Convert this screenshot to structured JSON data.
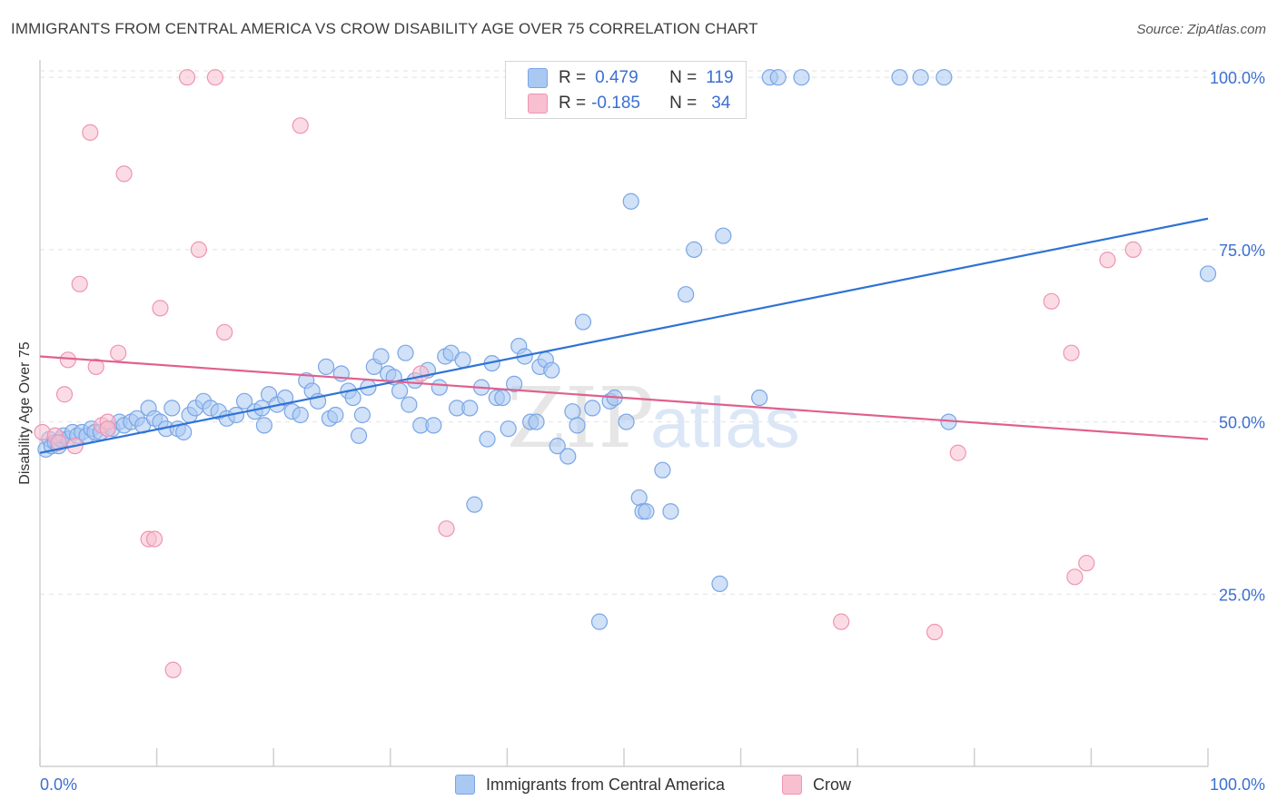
{
  "header": {
    "title": "IMMIGRANTS FROM CENTRAL AMERICA VS CROW DISABILITY AGE OVER 75 CORRELATION CHART",
    "source": "Source: ZipAtlas.com"
  },
  "watermark": {
    "zip": "ZIP",
    "atlas": "atlas"
  },
  "legend": {
    "series1": {
      "r_label": "R =",
      "r_value": "0.479",
      "n_label": "N =",
      "n_value": "119"
    },
    "series2": {
      "r_label": "R =",
      "r_value": "-0.185",
      "n_label": "N =",
      "n_value": "34"
    }
  },
  "colors": {
    "blue_fill": "#a9c8f2",
    "blue_stroke": "#7aa6e6",
    "blue_line": "#2f73d4",
    "pink_fill": "#f7bfd0",
    "pink_stroke": "#ee95b2",
    "pink_line": "#e0608e",
    "tick_text": "#3b6fd1",
    "grid": "#e2e2e2"
  },
  "chart_data": {
    "type": "scatter",
    "title": "IMMIGRANTS FROM CENTRAL AMERICA VS CROW DISABILITY AGE OVER 75 CORRELATION CHART",
    "xlabel": "",
    "ylabel": "Disability Age Over 75",
    "xlim": [
      0,
      100
    ],
    "ylim": [
      0,
      102
    ],
    "x_tick_labels": [
      "0.0%",
      "100.0%"
    ],
    "y_ticks": [
      25,
      50,
      75,
      100
    ],
    "y_tick_labels": [
      "25.0%",
      "50.0%",
      "75.0%",
      "100.0%"
    ],
    "grid": true,
    "legend_placement": "bottom-center",
    "series": [
      {
        "name": "Immigrants from Central America",
        "color": "#a9c8f2",
        "trend": {
          "x": [
            0,
            100
          ],
          "y": [
            45.5,
            79.5
          ]
        },
        "points": [
          [
            0.5,
            46
          ],
          [
            0.8,
            47.5
          ],
          [
            1,
            46.5
          ],
          [
            1.3,
            47
          ],
          [
            1.6,
            46.5
          ],
          [
            1.8,
            47.5
          ],
          [
            2,
            48
          ],
          [
            2.4,
            47.5
          ],
          [
            2.8,
            48.5
          ],
          [
            3.2,
            48
          ],
          [
            3.6,
            48.5
          ],
          [
            4,
            48
          ],
          [
            4.4,
            49
          ],
          [
            4.7,
            48.5
          ],
          [
            5.2,
            48.5
          ],
          [
            5.8,
            49
          ],
          [
            6.2,
            49
          ],
          [
            6.8,
            50
          ],
          [
            7.2,
            49.5
          ],
          [
            7.8,
            50
          ],
          [
            8.3,
            50.5
          ],
          [
            8.8,
            49.5
          ],
          [
            9.3,
            52
          ],
          [
            9.8,
            50.5
          ],
          [
            10.3,
            50
          ],
          [
            10.8,
            49
          ],
          [
            11.3,
            52
          ],
          [
            11.8,
            49
          ],
          [
            12.3,
            48.5
          ],
          [
            12.8,
            51
          ],
          [
            13.3,
            52
          ],
          [
            14,
            53
          ],
          [
            14.6,
            52
          ],
          [
            15.3,
            51.5
          ],
          [
            16,
            50.5
          ],
          [
            16.8,
            51
          ],
          [
            17.5,
            53
          ],
          [
            18.4,
            51.5
          ],
          [
            19,
            52
          ],
          [
            19.2,
            49.5
          ],
          [
            19.6,
            54
          ],
          [
            20.3,
            52.5
          ],
          [
            21,
            53.5
          ],
          [
            21.6,
            51.5
          ],
          [
            22.3,
            51
          ],
          [
            22.8,
            56
          ],
          [
            23.3,
            54.5
          ],
          [
            23.8,
            53
          ],
          [
            24.5,
            58
          ],
          [
            24.8,
            50.5
          ],
          [
            25.3,
            51
          ],
          [
            25.8,
            57
          ],
          [
            26.4,
            54.5
          ],
          [
            26.8,
            53.5
          ],
          [
            27.3,
            48
          ],
          [
            27.6,
            51
          ],
          [
            28.1,
            55
          ],
          [
            28.6,
            58
          ],
          [
            29.2,
            59.5
          ],
          [
            29.8,
            57
          ],
          [
            30.3,
            56.5
          ],
          [
            30.8,
            54.5
          ],
          [
            31.3,
            60
          ],
          [
            31.6,
            52.5
          ],
          [
            32.1,
            56
          ],
          [
            32.6,
            49.5
          ],
          [
            33.2,
            57.5
          ],
          [
            33.7,
            49.5
          ],
          [
            34.2,
            55
          ],
          [
            34.7,
            59.5
          ],
          [
            35.2,
            60
          ],
          [
            35.7,
            52
          ],
          [
            36.2,
            59
          ],
          [
            36.8,
            52
          ],
          [
            37.2,
            38
          ],
          [
            37.8,
            55
          ],
          [
            38.3,
            47.5
          ],
          [
            38.7,
            58.5
          ],
          [
            39.1,
            53.5
          ],
          [
            39.6,
            53.5
          ],
          [
            40.1,
            49
          ],
          [
            40.6,
            55.5
          ],
          [
            41,
            61
          ],
          [
            41.5,
            59.5
          ],
          [
            42,
            50
          ],
          [
            42.5,
            50
          ],
          [
            42.8,
            58
          ],
          [
            43.3,
            59
          ],
          [
            43.8,
            57.5
          ],
          [
            44.3,
            46.5
          ],
          [
            45.2,
            45
          ],
          [
            45.6,
            51.5
          ],
          [
            46,
            49.5
          ],
          [
            46.5,
            64.5
          ],
          [
            47.3,
            52
          ],
          [
            47.9,
            21
          ],
          [
            48.8,
            53
          ],
          [
            49.2,
            53.5
          ],
          [
            50.2,
            50
          ],
          [
            50.6,
            82
          ],
          [
            51.3,
            39
          ],
          [
            51.6,
            37
          ],
          [
            51.9,
            37
          ],
          [
            53.3,
            43
          ],
          [
            54,
            37
          ],
          [
            55.3,
            68.5
          ],
          [
            56,
            75
          ],
          [
            58.2,
            26.5
          ],
          [
            58.5,
            77
          ],
          [
            61.6,
            53.5
          ],
          [
            62.5,
            100
          ],
          [
            63.2,
            100
          ],
          [
            65.2,
            100
          ],
          [
            73.6,
            100
          ],
          [
            75.4,
            100
          ],
          [
            77.4,
            100
          ],
          [
            77.8,
            50
          ],
          [
            100,
            71.5
          ]
        ]
      },
      {
        "name": "Crow",
        "color": "#f7bfd0",
        "trend": {
          "x": [
            0,
            100
          ],
          "y": [
            59.5,
            47.5
          ]
        },
        "points": [
          [
            0.2,
            48.5
          ],
          [
            1.3,
            48
          ],
          [
            1.6,
            47
          ],
          [
            3,
            46.5
          ],
          [
            3.4,
            70
          ],
          [
            4.3,
            92
          ],
          [
            4.8,
            58
          ],
          [
            5.3,
            49.5
          ],
          [
            5.8,
            50
          ],
          [
            6.7,
            60
          ],
          [
            7.2,
            86
          ],
          [
            9.3,
            33
          ],
          [
            9.8,
            33
          ],
          [
            10.3,
            66.5
          ],
          [
            11.4,
            14
          ],
          [
            12.6,
            100
          ],
          [
            13.6,
            75
          ],
          [
            15,
            100
          ],
          [
            15.8,
            63
          ],
          [
            22.3,
            93
          ],
          [
            2.4,
            59
          ],
          [
            2.1,
            54
          ],
          [
            32.6,
            57
          ],
          [
            34.8,
            34.5
          ],
          [
            5.8,
            49
          ],
          [
            68.6,
            21
          ],
          [
            76.6,
            19.5
          ],
          [
            78.6,
            45.5
          ],
          [
            88.6,
            27.5
          ],
          [
            86.6,
            67.5
          ],
          [
            88.3,
            60
          ],
          [
            89.6,
            29.5
          ],
          [
            91.4,
            73.5
          ],
          [
            93.6,
            75
          ]
        ]
      }
    ]
  },
  "bottom_legend": {
    "series1": "Immigrants from Central America",
    "series2": "Crow"
  }
}
